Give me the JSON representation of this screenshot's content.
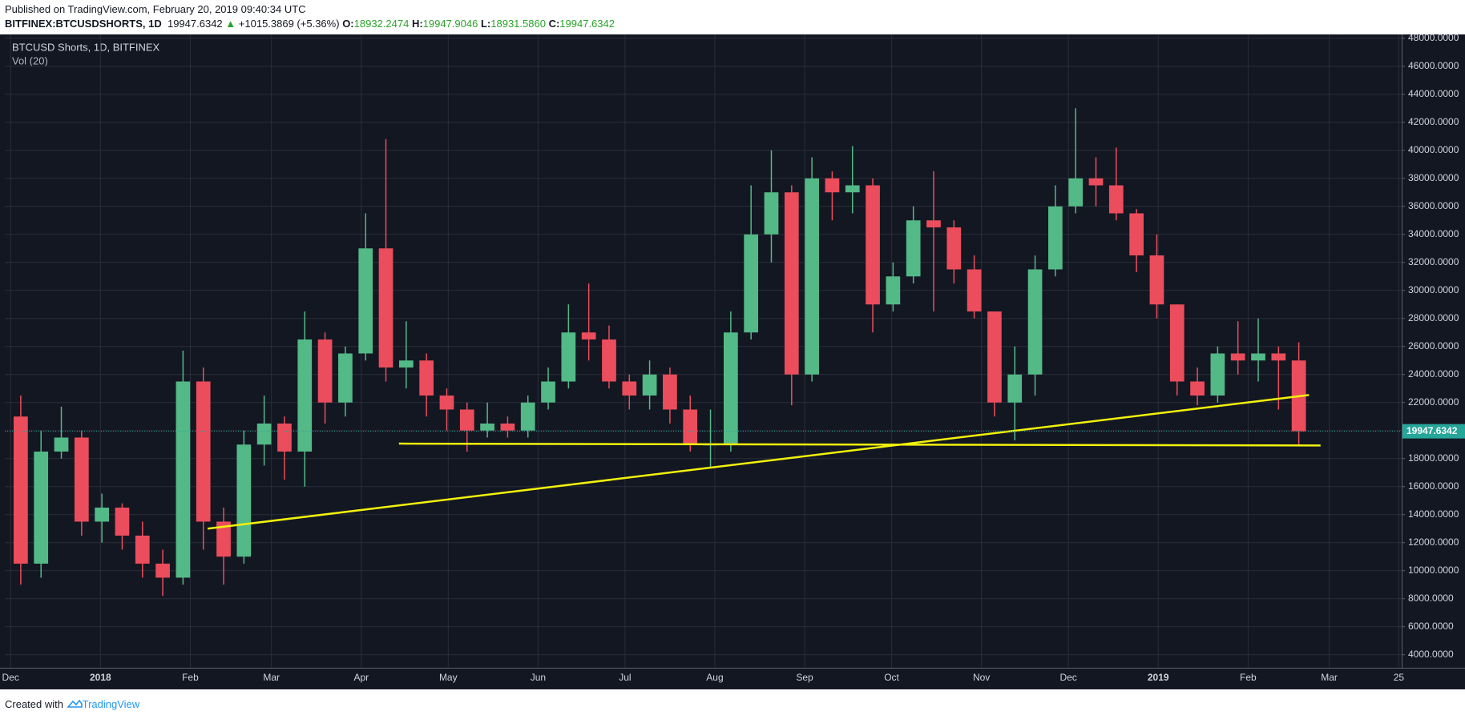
{
  "header": {
    "published": "Published on TradingView.com, February 20, 2019 09:40:34 UTC",
    "symbol": "BITFINEX:BTCUSDSHORTS, 1D",
    "last": "19947.6342",
    "arrow": "▲",
    "change": "+1015.3869 (+5.36%)",
    "ohlc": [
      {
        "label": "O:",
        "value": "18932.2474"
      },
      {
        "label": "H:",
        "value": "19947.9046"
      },
      {
        "label": "L:",
        "value": "18931.5860"
      },
      {
        "label": "C:",
        "value": "19947.6342"
      }
    ]
  },
  "footer": {
    "created": "Created with",
    "brand": "TradingView"
  },
  "chart_data": {
    "type": "candlestick",
    "title": "BTCUSD Shorts, 1D, BITFINEX",
    "indicator": "Vol (20)",
    "up_color": "#53b987",
    "down_color": "#eb4d5c",
    "grid": true,
    "last_price": 19947.6342,
    "last_price_color": "#26a69a",
    "xlim": [
      "2017-11-29",
      "2019-03-26"
    ],
    "ylim": [
      3070,
      48270
    ],
    "xticks": [
      {
        "value": "2017-12-01",
        "label": "Dec"
      },
      {
        "value": "2018-01-01",
        "label": "2018"
      },
      {
        "value": "2018-02-01",
        "label": "Feb"
      },
      {
        "value": "2018-03-01",
        "label": "Mar"
      },
      {
        "value": "2018-04-01",
        "label": "Apr"
      },
      {
        "value": "2018-05-01",
        "label": "May"
      },
      {
        "value": "2018-06-01",
        "label": "Jun"
      },
      {
        "value": "2018-07-01",
        "label": "Jul"
      },
      {
        "value": "2018-08-01",
        "label": "Aug"
      },
      {
        "value": "2018-09-01",
        "label": "Sep"
      },
      {
        "value": "2018-10-01",
        "label": "Oct"
      },
      {
        "value": "2018-11-01",
        "label": "Nov"
      },
      {
        "value": "2018-12-01",
        "label": "Dec"
      },
      {
        "value": "2019-01-01",
        "label": "2019"
      },
      {
        "value": "2019-02-01",
        "label": "Feb"
      },
      {
        "value": "2019-03-01",
        "label": "Mar"
      },
      {
        "value": "2019-03-25",
        "label": "25"
      }
    ],
    "yticks": [
      {
        "value": 4000,
        "label": "4000.0000"
      },
      {
        "value": 6000,
        "label": "6000.0000"
      },
      {
        "value": 8000,
        "label": "8000.0000"
      },
      {
        "value": 10000,
        "label": "10000.0000"
      },
      {
        "value": 12000,
        "label": "12000.0000"
      },
      {
        "value": 14000,
        "label": "14000.0000"
      },
      {
        "value": 16000,
        "label": "16000.0000"
      },
      {
        "value": 18000,
        "label": "18000.0000"
      },
      {
        "value": 20000,
        "label": "20000.0000"
      },
      {
        "value": 22000,
        "label": "22000.0000"
      },
      {
        "value": 24000,
        "label": "24000.0000"
      },
      {
        "value": 26000,
        "label": "26000.0000"
      },
      {
        "value": 28000,
        "label": "28000.0000"
      },
      {
        "value": 30000,
        "label": "30000.0000"
      },
      {
        "value": 32000,
        "label": "32000.0000"
      },
      {
        "value": 34000,
        "label": "34000.0000"
      },
      {
        "value": 36000,
        "label": "36000.0000"
      },
      {
        "value": 38000,
        "label": "38000.0000"
      },
      {
        "value": 40000,
        "label": "40000.0000"
      },
      {
        "value": 42000,
        "label": "42000.0000"
      },
      {
        "value": 44000,
        "label": "44000.0000"
      },
      {
        "value": 46000,
        "label": "46000.0000"
      },
      {
        "value": 48000,
        "label": "48000.0000"
      }
    ],
    "x": [
      "2017-12-01",
      "2017-12-08",
      "2017-12-15",
      "2017-12-22",
      "2017-12-29",
      "2018-01-05",
      "2018-01-12",
      "2018-01-19",
      "2018-01-26",
      "2018-02-02",
      "2018-02-09",
      "2018-02-16",
      "2018-02-23",
      "2018-03-02",
      "2018-03-09",
      "2018-03-16",
      "2018-03-23",
      "2018-03-30",
      "2018-04-06",
      "2018-04-13",
      "2018-04-20",
      "2018-04-27",
      "2018-05-04",
      "2018-05-11",
      "2018-05-18",
      "2018-05-25",
      "2018-06-01",
      "2018-06-08",
      "2018-06-15",
      "2018-06-22",
      "2018-06-29",
      "2018-07-06",
      "2018-07-13",
      "2018-07-20",
      "2018-07-27",
      "2018-08-03",
      "2018-08-10",
      "2018-08-17",
      "2018-08-24",
      "2018-08-31",
      "2018-09-07",
      "2018-09-14",
      "2018-09-21",
      "2018-09-28",
      "2018-10-05",
      "2018-10-12",
      "2018-10-19",
      "2018-10-26",
      "2018-11-02",
      "2018-11-09",
      "2018-11-16",
      "2018-11-23",
      "2018-11-30",
      "2018-12-07",
      "2018-12-14",
      "2018-12-21",
      "2018-12-28",
      "2019-01-04",
      "2019-01-11",
      "2019-01-18",
      "2019-01-25",
      "2019-02-01",
      "2019-02-08",
      "2019-02-15"
    ],
    "open": [
      21000,
      10500,
      18500,
      19500,
      13500,
      14500,
      12500,
      10500,
      9500,
      23500,
      13500,
      11000,
      19000,
      20500,
      18500,
      26500,
      22000,
      25500,
      33000,
      24500,
      25000,
      22500,
      21500,
      20000,
      20500,
      20000,
      22000,
      23500,
      27000,
      26500,
      23500,
      22500,
      24000,
      21500,
      19000,
      19000,
      27000,
      34000,
      37000,
      24000,
      38000,
      37000,
      37500,
      29000,
      31000,
      35000,
      34500,
      31500,
      28500,
      22000,
      24000,
      31500,
      36000,
      38000,
      37500,
      35500,
      32500,
      29000,
      23500,
      22500,
      25500,
      25000,
      25500,
      25000
    ],
    "high": [
      22500,
      20000,
      21700,
      20000,
      15500,
      14800,
      13500,
      11500,
      25700,
      24500,
      14500,
      20000,
      22500,
      21000,
      28500,
      27000,
      26000,
      35500,
      40800,
      27800,
      25500,
      23000,
      22000,
      22000,
      21000,
      22500,
      24500,
      29000,
      30500,
      27500,
      24000,
      25000,
      24500,
      22500,
      21500,
      28500,
      37500,
      40000,
      37500,
      39500,
      38500,
      40300,
      38000,
      32000,
      36000,
      38500,
      35000,
      32500,
      28500,
      26000,
      32500,
      37500,
      43000,
      39500,
      40200,
      35800,
      34000,
      29000,
      24500,
      26000,
      27800,
      28000,
      26000,
      26300
    ],
    "low": [
      9000,
      9500,
      18000,
      12500,
      12000,
      11500,
      9500,
      8200,
      9000,
      11500,
      9000,
      10500,
      17500,
      16500,
      16000,
      20500,
      21000,
      25000,
      23500,
      23000,
      21000,
      20000,
      18500,
      19500,
      19500,
      19500,
      21500,
      23000,
      25000,
      23000,
      21500,
      21500,
      20500,
      18500,
      17300,
      18500,
      26500,
      32000,
      21800,
      23500,
      35000,
      35500,
      27000,
      28500,
      30500,
      28500,
      30500,
      28000,
      21000,
      19300,
      22500,
      31000,
      35500,
      36000,
      35000,
      31300,
      28000,
      22500,
      21800,
      22000,
      24000,
      23500,
      21500,
      18900
    ],
    "close": [
      10500,
      18500,
      19500,
      13500,
      14500,
      12500,
      10500,
      9500,
      23500,
      13500,
      11000,
      19000,
      20500,
      18500,
      26500,
      22000,
      25500,
      33000,
      24500,
      25000,
      22500,
      21500,
      20000,
      20500,
      20000,
      22000,
      23500,
      27000,
      26500,
      23500,
      22500,
      24000,
      21500,
      19000,
      19000,
      27000,
      34000,
      37000,
      24000,
      38000,
      37000,
      37500,
      29000,
      31000,
      35000,
      34500,
      31500,
      28500,
      22000,
      24000,
      31500,
      36000,
      38000,
      37500,
      35500,
      32500,
      29000,
      23500,
      22500,
      25500,
      25000,
      25500,
      25000,
      19947.6342
    ],
    "trendline_color": "#f2f20c",
    "trendlines": [
      {
        "x": [
          "2018-02-07",
          "2019-02-22"
        ],
        "y": [
          13000,
          22533
        ]
      },
      {
        "x": [
          "2018-04-14",
          "2019-02-26"
        ],
        "y": [
          19067,
          18933
        ]
      }
    ]
  }
}
